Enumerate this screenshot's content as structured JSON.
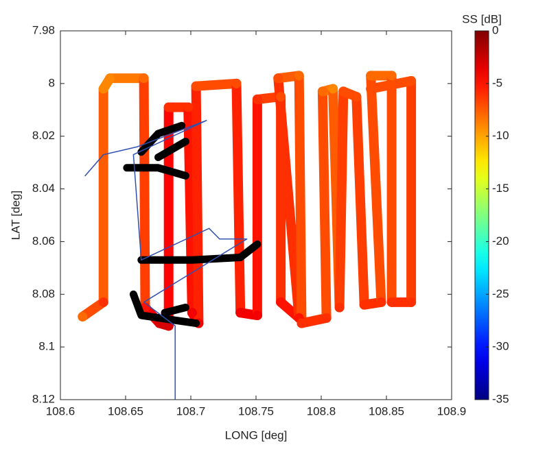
{
  "chart_data": {
    "type": "track",
    "xlabel": "LONG [deg]",
    "ylabel": "LAT [deg]",
    "xlim": [
      108.6,
      108.9
    ],
    "xticks": [
      108.6,
      108.65,
      108.7,
      108.75,
      108.8,
      108.85,
      108.9
    ],
    "ylim": [
      7.98,
      8.12
    ],
    "yticks": [
      7.98,
      8,
      8.02,
      8.04,
      8.06,
      8.08,
      8.1,
      8.12
    ],
    "yreverse": true,
    "colorbar": {
      "label": "SS [dB]",
      "colormap": "jet",
      "clim": [
        -35,
        0
      ],
      "ticks": [
        0,
        -5,
        -10,
        -15,
        -20,
        -25,
        -30,
        -35
      ]
    },
    "series": [
      {
        "color": "colormap",
        "linewidth": 14,
        "x": [
          108.617,
          108.633,
          108.633,
          108.638,
          108.664,
          108.665,
          108.676,
          108.683,
          108.683,
          108.698,
          108.701,
          108.706,
          108.704,
          108.735,
          108.738,
          108.751,
          108.751,
          108.769,
          108.769,
          108.783,
          108.767,
          108.783,
          108.785,
          108.804,
          108.801,
          108.809,
          108.814,
          108.817,
          108.827,
          108.833,
          108.846,
          108.838,
          108.854,
          108.854,
          108.869,
          108.869,
          108.838
        ],
        "y": [
          8.0885,
          8.083,
          8.002,
          7.998,
          7.998,
          8.085,
          8.091,
          8.092,
          8.009,
          8.009,
          8.087,
          8.091,
          8.001,
          8.0,
          8.087,
          8.088,
          8.006,
          8.005,
          8.083,
          8.089,
          7.998,
          7.997,
          8.091,
          8.089,
          8.003,
          8.002,
          8.085,
          8.003,
          8.005,
          8.084,
          8.083,
          7.997,
          7.997,
          8.083,
          8.083,
          7.999,
          8.002
        ],
        "ss": [
          -8,
          -6,
          -9,
          -9,
          -8,
          -5,
          -3,
          -3,
          -6,
          -6,
          -4,
          -4,
          -7,
          -7,
          -4,
          -4,
          -6,
          -7,
          -5,
          -5,
          -7,
          -8,
          -6,
          -6,
          -8,
          -9,
          -6,
          -7,
          -7,
          -6,
          -6,
          -8,
          -8,
          -6,
          -6,
          -7,
          -7
        ]
      },
      {
        "color": "#000000",
        "linewidth": 11,
        "x": [
          108.662,
          108.675,
          108.693,
          null,
          108.651,
          108.675,
          108.696,
          null,
          108.675,
          108.696,
          null,
          108.662,
          108.701,
          108.738,
          108.751,
          null,
          108.656,
          108.662,
          108.704,
          null,
          108.68,
          108.696
        ],
        "y": [
          8.026,
          8.019,
          8.016,
          null,
          8.032,
          8.032,
          8.035,
          null,
          8.028,
          8.022,
          null,
          8.067,
          8.067,
          8.066,
          8.061,
          null,
          8.08,
          8.088,
          8.091,
          null,
          8.087,
          8.085
        ]
      },
      {
        "color": "#3050b0",
        "linewidth": 1.5,
        "x": [
          108.619,
          108.633,
          108.659,
          108.712,
          108.656,
          108.662,
          108.714,
          108.722,
          108.743,
          108.664,
          108.688,
          108.688
        ],
        "y": [
          8.035,
          8.027,
          8.024,
          8.014,
          8.027,
          8.067,
          8.055,
          8.059,
          8.059,
          8.083,
          8.092,
          8.12
        ]
      }
    ]
  }
}
